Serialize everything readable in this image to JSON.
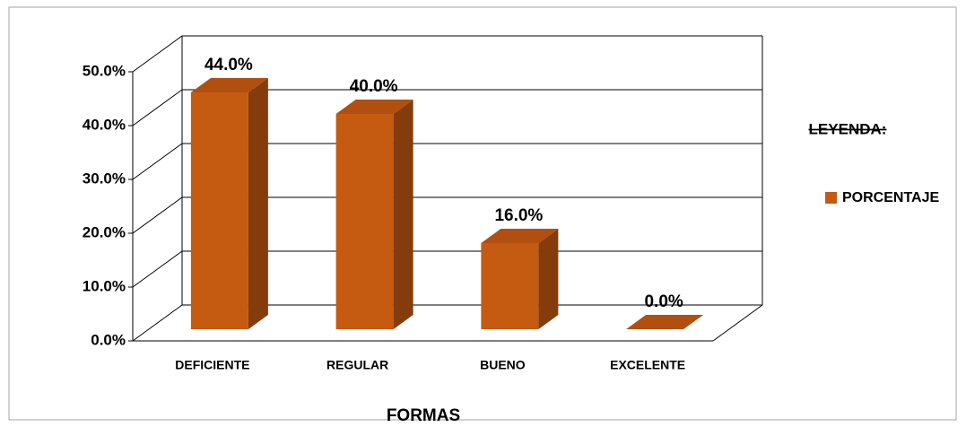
{
  "chart_data": {
    "type": "bar3d",
    "categories": [
      "DEFICIENTE",
      "REGULAR",
      "BUENO",
      "EXCELENTE"
    ],
    "series": [
      {
        "name": "PORCENTAJE",
        "color": "#c55a11",
        "values": [
          44,
          40,
          16,
          0
        ],
        "value_labels": [
          "44.0%",
          "40.0%",
          "16.0%",
          "0.0%"
        ]
      }
    ],
    "xlabel": "FORMAS",
    "legend_title": "LEYENDA:",
    "legend": "right",
    "ylim": [
      0,
      50
    ],
    "yticks": [
      {
        "value": 0,
        "label": "0.0%"
      },
      {
        "value": 10,
        "label": "10.0%"
      },
      {
        "value": 20,
        "label": "20.0%"
      },
      {
        "value": 30,
        "label": "30.0%"
      },
      {
        "value": 40,
        "label": "40.0%"
      },
      {
        "value": 50,
        "label": "50.0%"
      }
    ],
    "grid": true
  }
}
